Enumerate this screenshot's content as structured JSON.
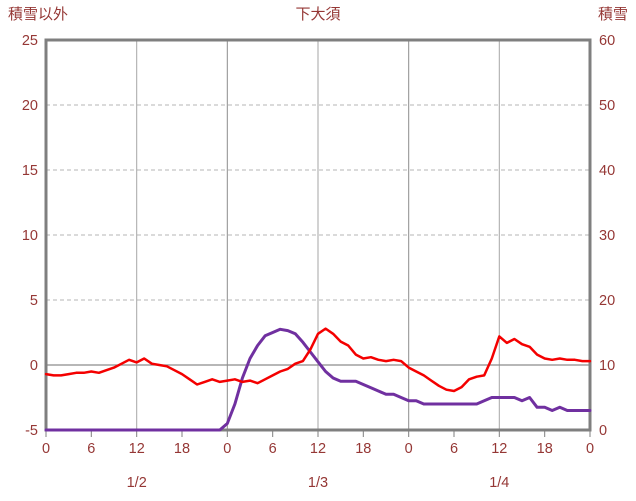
{
  "header": {
    "left_axis_title": "積雪以外",
    "chart_title": "下大須",
    "right_axis_title": "積雪"
  },
  "theme": {
    "background": "#ffffff",
    "border_color": "#7f7f7f",
    "grid_major_color": "#8c8c8c",
    "grid_minor_color": "#a6a6a6",
    "grid_dash_color": "#b5b5b5",
    "label_color": "#953735",
    "tick_color": "#7f7f7f"
  },
  "chart_data": {
    "type": "line",
    "title": "下大須",
    "legend": "none",
    "grid": "on",
    "left_axis": {
      "title": "積雪以外",
      "min": -5,
      "max": 25,
      "ticks": [
        -5,
        0,
        5,
        10,
        15,
        20,
        25
      ]
    },
    "right_axis": {
      "title": "積雪",
      "min": 0,
      "max": 60,
      "ticks": [
        0,
        10,
        20,
        30,
        40,
        50,
        60
      ]
    },
    "x_axis": {
      "unit": "hour",
      "total_hours": 72,
      "tick_hours": [
        0,
        6,
        12,
        18,
        24,
        30,
        36,
        42,
        48,
        54,
        60,
        66,
        72
      ],
      "tick_labels": [
        "0",
        "6",
        "12",
        "18",
        "0",
        "6",
        "12",
        "18",
        "0",
        "6",
        "12",
        "18",
        "0"
      ],
      "day_labels": [
        {
          "label": "1/2",
          "hour": 12
        },
        {
          "label": "1/3",
          "hour": 36
        },
        {
          "label": "1/4",
          "hour": 60
        }
      ],
      "solid_gridline_hours": [
        24,
        48
      ],
      "minor_gridline_hours": [
        12,
        36,
        60
      ]
    },
    "series": [
      {
        "name": "積雪以外",
        "axis": "left",
        "color": "#f40000",
        "width": 2.5,
        "values": [
          -0.7,
          -0.8,
          -0.8,
          -0.7,
          -0.6,
          -0.6,
          -0.5,
          -0.6,
          -0.4,
          -0.2,
          0.1,
          0.4,
          0.2,
          0.5,
          0.1,
          0.0,
          -0.1,
          -0.4,
          -0.7,
          -1.1,
          -1.5,
          -1.3,
          -1.1,
          -1.3,
          -1.2,
          -1.1,
          -1.3,
          -1.2,
          -1.4,
          -1.1,
          -0.8,
          -0.5,
          -0.3,
          0.1,
          0.3,
          1.2,
          2.4,
          2.8,
          2.4,
          1.8,
          1.5,
          0.8,
          0.5,
          0.6,
          0.4,
          0.3,
          0.4,
          0.3,
          -0.2,
          -0.5,
          -0.8,
          -1.2,
          -1.6,
          -1.9,
          -2.0,
          -1.7,
          -1.1,
          -0.9,
          -0.8,
          0.5,
          2.2,
          1.7,
          2.0,
          1.6,
          1.4,
          0.8,
          0.5,
          0.4,
          0.5,
          0.4,
          0.4,
          0.3,
          0.3
        ]
      },
      {
        "name": "積雪",
        "axis": "right",
        "color": "#7030a0",
        "width": 3,
        "values": [
          0,
          0,
          0,
          0,
          0,
          0,
          0,
          0,
          0,
          0,
          0,
          0,
          0,
          0,
          0,
          0,
          0,
          0,
          0,
          0,
          0,
          0,
          0,
          0,
          1,
          4,
          8,
          11,
          13,
          14.5,
          15,
          15.5,
          15.3,
          14.8,
          13.5,
          12,
          10.5,
          9,
          8,
          7.5,
          7.5,
          7.5,
          7,
          6.5,
          6,
          5.5,
          5.5,
          5,
          4.5,
          4.5,
          4,
          4,
          4,
          4,
          4,
          4,
          4,
          4,
          4.5,
          5,
          5,
          5,
          5,
          4.5,
          5,
          3.5,
          3.5,
          3,
          3.5,
          3,
          3,
          3,
          3
        ]
      }
    ]
  }
}
